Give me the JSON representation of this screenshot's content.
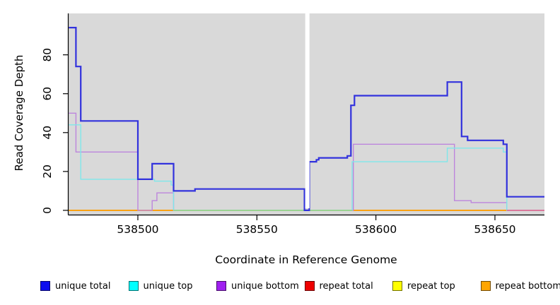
{
  "chart_data": {
    "type": "line",
    "line_style": "step",
    "title": "",
    "xlabel": "Coordinate in Reference Genome",
    "ylabel": "Read Coverage Depth",
    "xlim": [
      538470.9,
      538670.8
    ],
    "ylim": [
      -2.2,
      101.3
    ],
    "x_ticks": [
      538500,
      538550,
      538600,
      538650
    ],
    "y_ticks": [
      0,
      20,
      40,
      60,
      80
    ],
    "grid": false,
    "plot_bg": "#d9d9d9",
    "legend_position": "bottom",
    "series": [
      {
        "name": "unique total",
        "line_color": "#3232dd",
        "line_width": 2.2,
        "points": [
          [
            538471,
            94
          ],
          [
            538474,
            74
          ],
          [
            538476,
            46
          ],
          [
            538500,
            16
          ],
          [
            538506,
            24
          ],
          [
            538515,
            10
          ],
          [
            538524,
            11
          ],
          [
            538570,
            0
          ],
          [
            538572,
            25
          ],
          [
            538575,
            26
          ],
          [
            538576,
            27
          ],
          [
            538588,
            28
          ],
          [
            538589.5,
            54
          ],
          [
            538591,
            59
          ],
          [
            538630,
            66
          ],
          [
            538636,
            38
          ],
          [
            538638.5,
            36
          ],
          [
            538653.5,
            34
          ],
          [
            538655,
            7
          ]
        ]
      },
      {
        "name": "unique top",
        "line_color": "#7fe7ea",
        "line_width": 1.4,
        "points": [
          [
            538471,
            44
          ],
          [
            538476,
            16
          ],
          [
            538507,
            15
          ],
          [
            538514,
            13
          ],
          [
            538515,
            0
          ],
          [
            538590,
            25
          ],
          [
            538630,
            32
          ],
          [
            538653.5,
            30
          ],
          [
            538655,
            0
          ]
        ]
      },
      {
        "name": "unique bottom",
        "line_color": "#bd85dd",
        "line_width": 1.4,
        "points": [
          [
            538471,
            50
          ],
          [
            538474,
            30
          ],
          [
            538500,
            0
          ],
          [
            538506,
            5
          ],
          [
            538508,
            9
          ],
          [
            538515,
            0
          ],
          [
            538590.5,
            34
          ],
          [
            538633,
            5
          ],
          [
            538640,
            4
          ],
          [
            538655,
            0
          ]
        ]
      },
      {
        "name": "repeat total",
        "line_color": "#e00000",
        "line_width": 1.4,
        "points": [
          [
            538471,
            0
          ]
        ]
      },
      {
        "name": "repeat top",
        "line_color": "#f5f500",
        "line_width": 1.4,
        "points": [
          [
            538471,
            0
          ]
        ]
      },
      {
        "name": "repeat bottom",
        "line_color": "#ff9e00",
        "line_width": 1.6,
        "points": [
          [
            538471,
            0
          ]
        ]
      }
    ],
    "baseline_overlays": [
      {
        "x_start": 538515,
        "x_end": 538590,
        "color": "#92d992"
      },
      {
        "x_start": 538655,
        "x_end": 538670.8,
        "color": "#df6b9e"
      }
    ],
    "gap_band": {
      "x_start": 538570.3,
      "x_end": 538572.1,
      "color": "#ffffff"
    },
    "legend": [
      {
        "label": "unique total",
        "color": "#0d0dee"
      },
      {
        "label": "unique top",
        "color": "#00ffff"
      },
      {
        "label": "unique bottom",
        "color": "#a020f0"
      },
      {
        "label": "repeat total",
        "color": "#ee0000"
      },
      {
        "label": "repeat top",
        "color": "#ffff00"
      },
      {
        "label": "repeat bottom",
        "color": "#ffa500"
      }
    ]
  }
}
